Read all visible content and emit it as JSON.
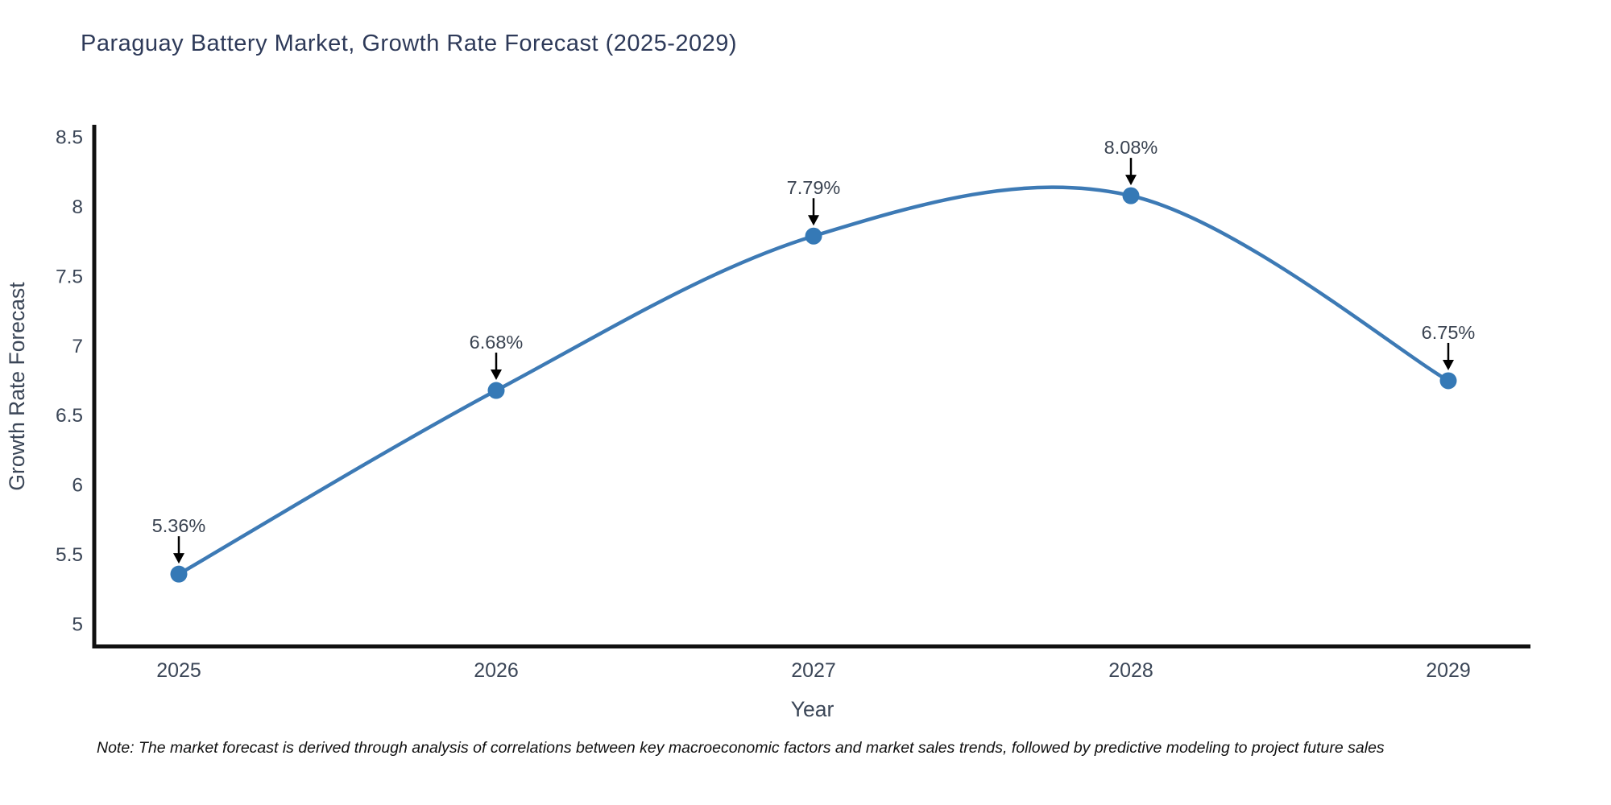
{
  "title": "Paraguay Battery Market, Growth Rate Forecast (2025-2029)",
  "note": "Note: The market forecast is derived through analysis of correlations between key macroeconomic factors and market sales trends, followed by predictive modeling to project future sales",
  "chart_data": {
    "type": "line",
    "title": "Paraguay Battery Market, Growth Rate Forecast (2025-2029)",
    "xlabel": "Year",
    "ylabel": "Growth Rate Forecast",
    "categories": [
      "2025",
      "2026",
      "2027",
      "2028",
      "2029"
    ],
    "values": [
      5.36,
      6.68,
      7.79,
      8.08,
      6.75
    ],
    "point_labels": [
      "5.36%",
      "6.68%",
      "7.79%",
      "8.08%",
      "6.75%"
    ],
    "yticks": [
      5,
      5.5,
      6,
      6.5,
      7,
      7.5,
      8,
      8.5
    ],
    "ytick_labels": [
      "5",
      "5.5",
      "6",
      "6.5",
      "7",
      "7.5",
      "8",
      "8.5"
    ],
    "ylim": [
      4.84,
      8.59
    ],
    "grid": false,
    "legend": "none",
    "curve": "spline",
    "line_color": "#3d7ab5",
    "marker_color": "#3579b6",
    "arrow_color": "#000000",
    "spine_color": "#101010",
    "tick_color": "#3b4657",
    "label_color": "#3a4351",
    "axis_title_color": "#3b4657"
  }
}
